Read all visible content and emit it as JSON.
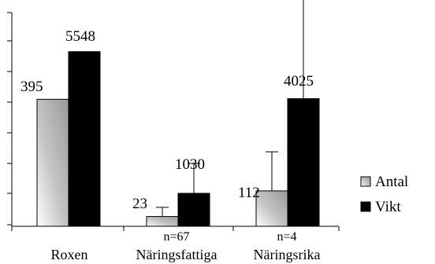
{
  "chart_data": {
    "type": "bar",
    "categories": [
      "Roxen",
      "Näringsfattiga",
      "Näringsrika"
    ],
    "category_sublabels": [
      "",
      "n=67",
      "n=4"
    ],
    "series": [
      {
        "name": "Antal",
        "color": "#c8c8c8",
        "values": [
          395,
          23,
          112
        ],
        "value_labels": [
          "395",
          "23",
          "112"
        ],
        "error_plus": [
          0,
          1.5,
          6.4
        ]
      },
      {
        "name": "Vikt",
        "color": "#000000",
        "values": [
          5548,
          1030,
          4025
        ],
        "value_labels": [
          "5548",
          "1030",
          "4025"
        ],
        "error_plus": [
          0,
          4.9,
          21.1
        ]
      }
    ],
    "value_scale_note": "bar heights shown on common axis, plotted height ~ 0..35 units",
    "plotted_heights": {
      "Antal": [
        20.8,
        1.6,
        5.8
      ],
      "Vikt": [
        28.6,
        5.4,
        20.9
      ]
    },
    "ylim": [
      0,
      35
    ],
    "y_tick_count": 8,
    "y_tick_labels_visible": false,
    "grid": false,
    "legend": "right"
  }
}
